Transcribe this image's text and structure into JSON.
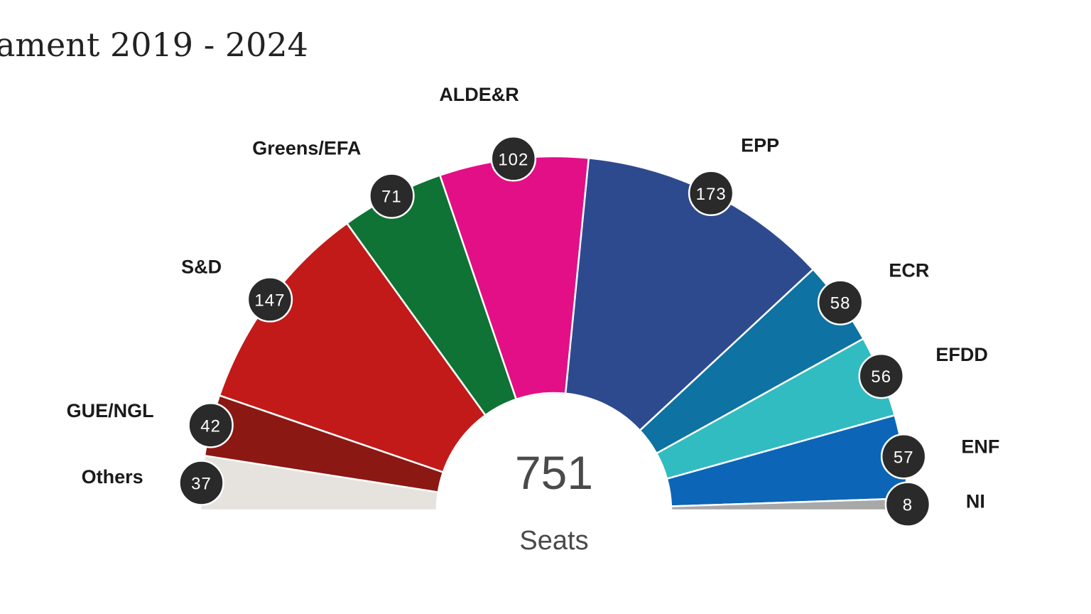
{
  "page": {
    "title": "ament 2019 - 2024"
  },
  "chart_data": {
    "type": "pie",
    "subtype": "parliament-semicircle",
    "total": 751,
    "total_label": "751",
    "unit_label": "Seats",
    "series": [
      {
        "name": "Others",
        "value": 37,
        "label": "37",
        "color": "#e6e3df"
      },
      {
        "name": "GUE/NGL",
        "value": 42,
        "label": "42",
        "color": "#8b1812"
      },
      {
        "name": "S&D",
        "value": 147,
        "label": "147",
        "color": "#c21a19"
      },
      {
        "name": "Greens/EFA",
        "value": 71,
        "label": "71",
        "color": "#0e7334"
      },
      {
        "name": "ALDE&R",
        "value": 102,
        "label": "102",
        "color": "#e30f86"
      },
      {
        "name": "EPP",
        "value": 173,
        "label": "173",
        "color": "#2e4a8e"
      },
      {
        "name": "ECR",
        "value": 58,
        "label": "58",
        "color": "#0e72a2"
      },
      {
        "name": "EFDD",
        "value": 56,
        "label": "56",
        "color": "#31bcc1"
      },
      {
        "name": "ENF",
        "value": 57,
        "label": "57",
        "color": "#0c65b7"
      },
      {
        "name": "NI",
        "value": 8,
        "label": "8",
        "color": "#a8a8a8"
      }
    ],
    "badge_color": "#2a2a2a"
  }
}
